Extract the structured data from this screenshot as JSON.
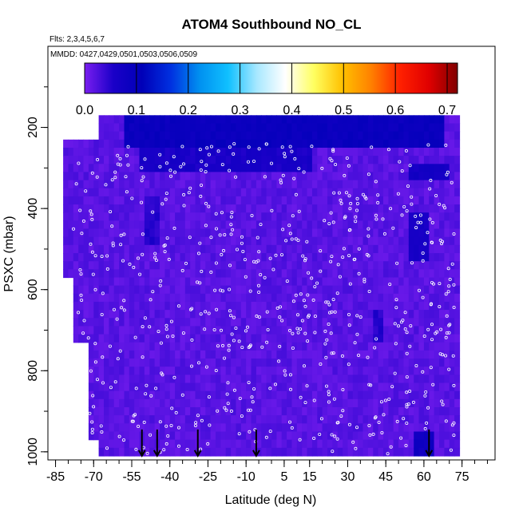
{
  "chart_data": {
    "type": "heatmap",
    "title": "ATOM4 Southbound NO_CL",
    "flights_label": "Flts: 2,3,4,5,6,7",
    "dates_label": "MMDD: 0427,0429,0501,0503,0506,0509",
    "xlabel": "Latitude (deg N)",
    "ylabel": "PSXC (mbar)",
    "xlim": [
      -88,
      88
    ],
    "ylim": [
      1020,
      0
    ],
    "x_ticks": [
      -85,
      -70,
      -55,
      -40,
      -25,
      -10,
      5,
      15,
      30,
      45,
      60,
      75
    ],
    "x_tick_labels": [
      "-85",
      "-70",
      "-55",
      "-40",
      "-25",
      "-10",
      "5",
      "15",
      "30",
      "45",
      "60",
      "75"
    ],
    "y_ticks": [
      200,
      400,
      600,
      800,
      1000
    ],
    "y_tick_labels": [
      "200",
      "400",
      "600",
      "800",
      "1000"
    ],
    "colorbar": {
      "range": [
        0.0,
        0.72
      ],
      "ticks": [
        0.0,
        0.1,
        0.2,
        0.3,
        0.4,
        0.5,
        0.6,
        0.7
      ],
      "tick_labels": [
        "0.0",
        "0.1",
        "0.2",
        "0.3",
        "0.4",
        "0.5",
        "0.6",
        "0.7"
      ],
      "colors": [
        "#7a1ef0",
        "#1a00c8",
        "#0000b8",
        "#0030e0",
        "#0090f0",
        "#10c0ff",
        "#a8e8ff",
        "#ffffff",
        "#ffff60",
        "#ffc000",
        "#ff8000",
        "#ff2000",
        "#e00000",
        "#800000"
      ]
    },
    "field": {
      "value_range": [
        0.0,
        0.1
      ],
      "typical_value": 0.02,
      "coverage": [
        {
          "lat_range": [
            -82,
            -68
          ],
          "p_range": [
            235,
            560
          ]
        },
        {
          "lat_range": [
            -78,
            -68
          ],
          "p_range": [
            560,
            720
          ]
        },
        {
          "lat_range": [
            -72,
            -62
          ],
          "p_range": [
            720,
            960
          ]
        },
        {
          "lat_range": [
            -67,
            74
          ],
          "p_range": [
            175,
            1010
          ]
        }
      ],
      "enhanced_regions": [
        {
          "lat_range": [
            -58,
            68
          ],
          "p_range": [
            175,
            240
          ],
          "value": 0.1
        },
        {
          "lat_range": [
            -52,
            15
          ],
          "p_range": [
            240,
            300
          ],
          "value": 0.07
        },
        {
          "lat_range": [
            55,
            70
          ],
          "p_range": [
            290,
            330
          ],
          "value": 0.08
        },
        {
          "lat_range": [
            -50,
            -45
          ],
          "p_range": [
            380,
            480
          ],
          "value": 0.06
        },
        {
          "lat_range": [
            55,
            62
          ],
          "p_range": [
            420,
            520
          ],
          "value": 0.07
        },
        {
          "lat_range": [
            56,
            64
          ],
          "p_range": [
            950,
            1000
          ],
          "value": 0.09
        },
        {
          "lat_range": [
            40,
            44
          ],
          "p_range": [
            650,
            720
          ],
          "value": 0.06
        }
      ]
    },
    "markers": {
      "type": "vertical-arrows",
      "x": [
        -51,
        -45,
        -29,
        -6,
        62
      ],
      "from_p": 945,
      "to_p": 1010
    }
  },
  "colors": {
    "axis": "#000000",
    "samples": "#ffffff",
    "background": "#ffffff"
  }
}
